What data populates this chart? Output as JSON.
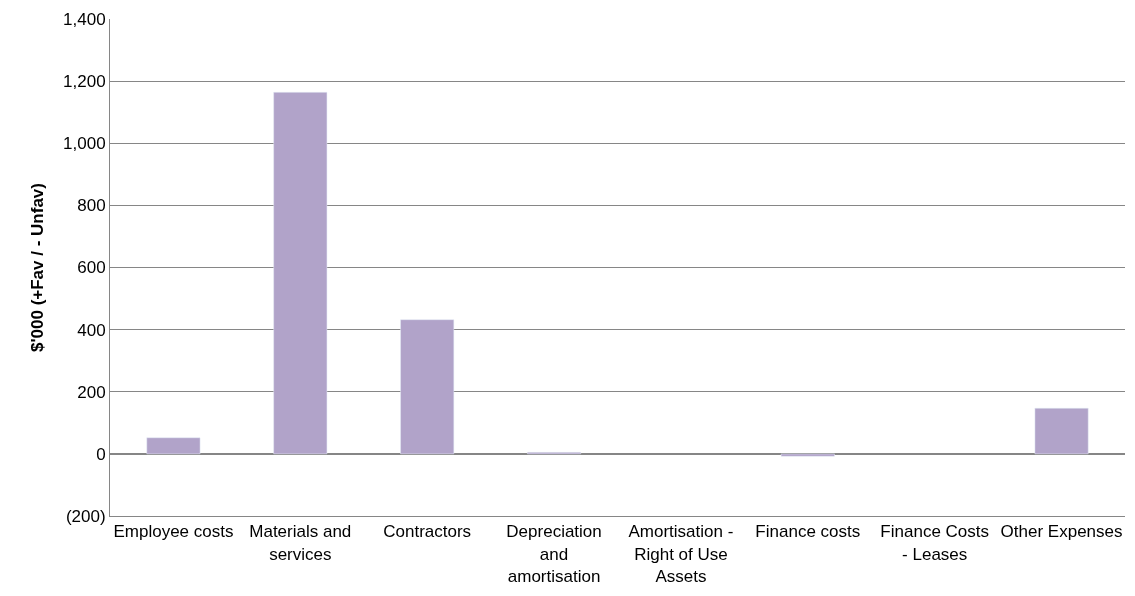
{
  "chart_data": {
    "type": "bar",
    "ylabel": "$'000 (+Fav / - Unfav)",
    "categories": [
      "Employee costs",
      "Materials and services",
      "Contractors",
      "Depreciation and amortisation",
      "Amortisation - Right of Use Assets",
      "Finance costs",
      "Finance Costs - Leases",
      "Other Expenses"
    ],
    "values": [
      52,
      1164,
      432,
      5,
      null,
      -8,
      null,
      147
    ],
    "color": "#b1a3c9",
    "ylim": [
      -200,
      1400
    ],
    "yticks": [
      {
        "value": -200,
        "label": "(200)"
      },
      {
        "value": 0,
        "label": "0"
      },
      {
        "value": 200,
        "label": "200"
      },
      {
        "value": 400,
        "label": "400"
      },
      {
        "value": 600,
        "label": "600"
      },
      {
        "value": 800,
        "label": "800"
      },
      {
        "value": 1000,
        "label": "1,000"
      },
      {
        "value": 1200,
        "label": "1,200"
      },
      {
        "value": 1400,
        "label": "1,400"
      }
    ],
    "grid": "y"
  }
}
